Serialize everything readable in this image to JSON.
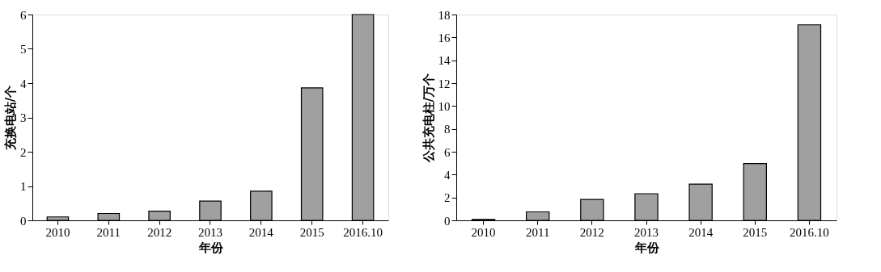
{
  "chart_data": [
    {
      "type": "bar",
      "xlabel": "年份",
      "ylabel": "充换电站/个",
      "categories": [
        "2010",
        "2011",
        "2012",
        "2013",
        "2014",
        "2015",
        "2016.10"
      ],
      "values": [
        0.1,
        0.2,
        0.27,
        0.56,
        0.85,
        3.86,
        6.0
      ],
      "color": "#a0a0a0",
      "ylim": [
        0,
        6
      ],
      "yticks": [
        0,
        1,
        2,
        3,
        4,
        5,
        6
      ],
      "grid": false
    },
    {
      "type": "bar",
      "xlabel": "年份",
      "ylabel": "公共充电柱/万个",
      "categories": [
        "2010",
        "2011",
        "2012",
        "2013",
        "2014",
        "2015",
        "2016.10"
      ],
      "values": [
        0.08,
        0.74,
        1.83,
        2.33,
        3.17,
        4.97,
        17.1
      ],
      "color": "#a0a0a0",
      "ylim": [
        0,
        18
      ],
      "yticks": [
        0,
        2,
        4,
        6,
        8,
        10,
        12,
        14,
        16,
        18
      ],
      "grid": false
    }
  ]
}
